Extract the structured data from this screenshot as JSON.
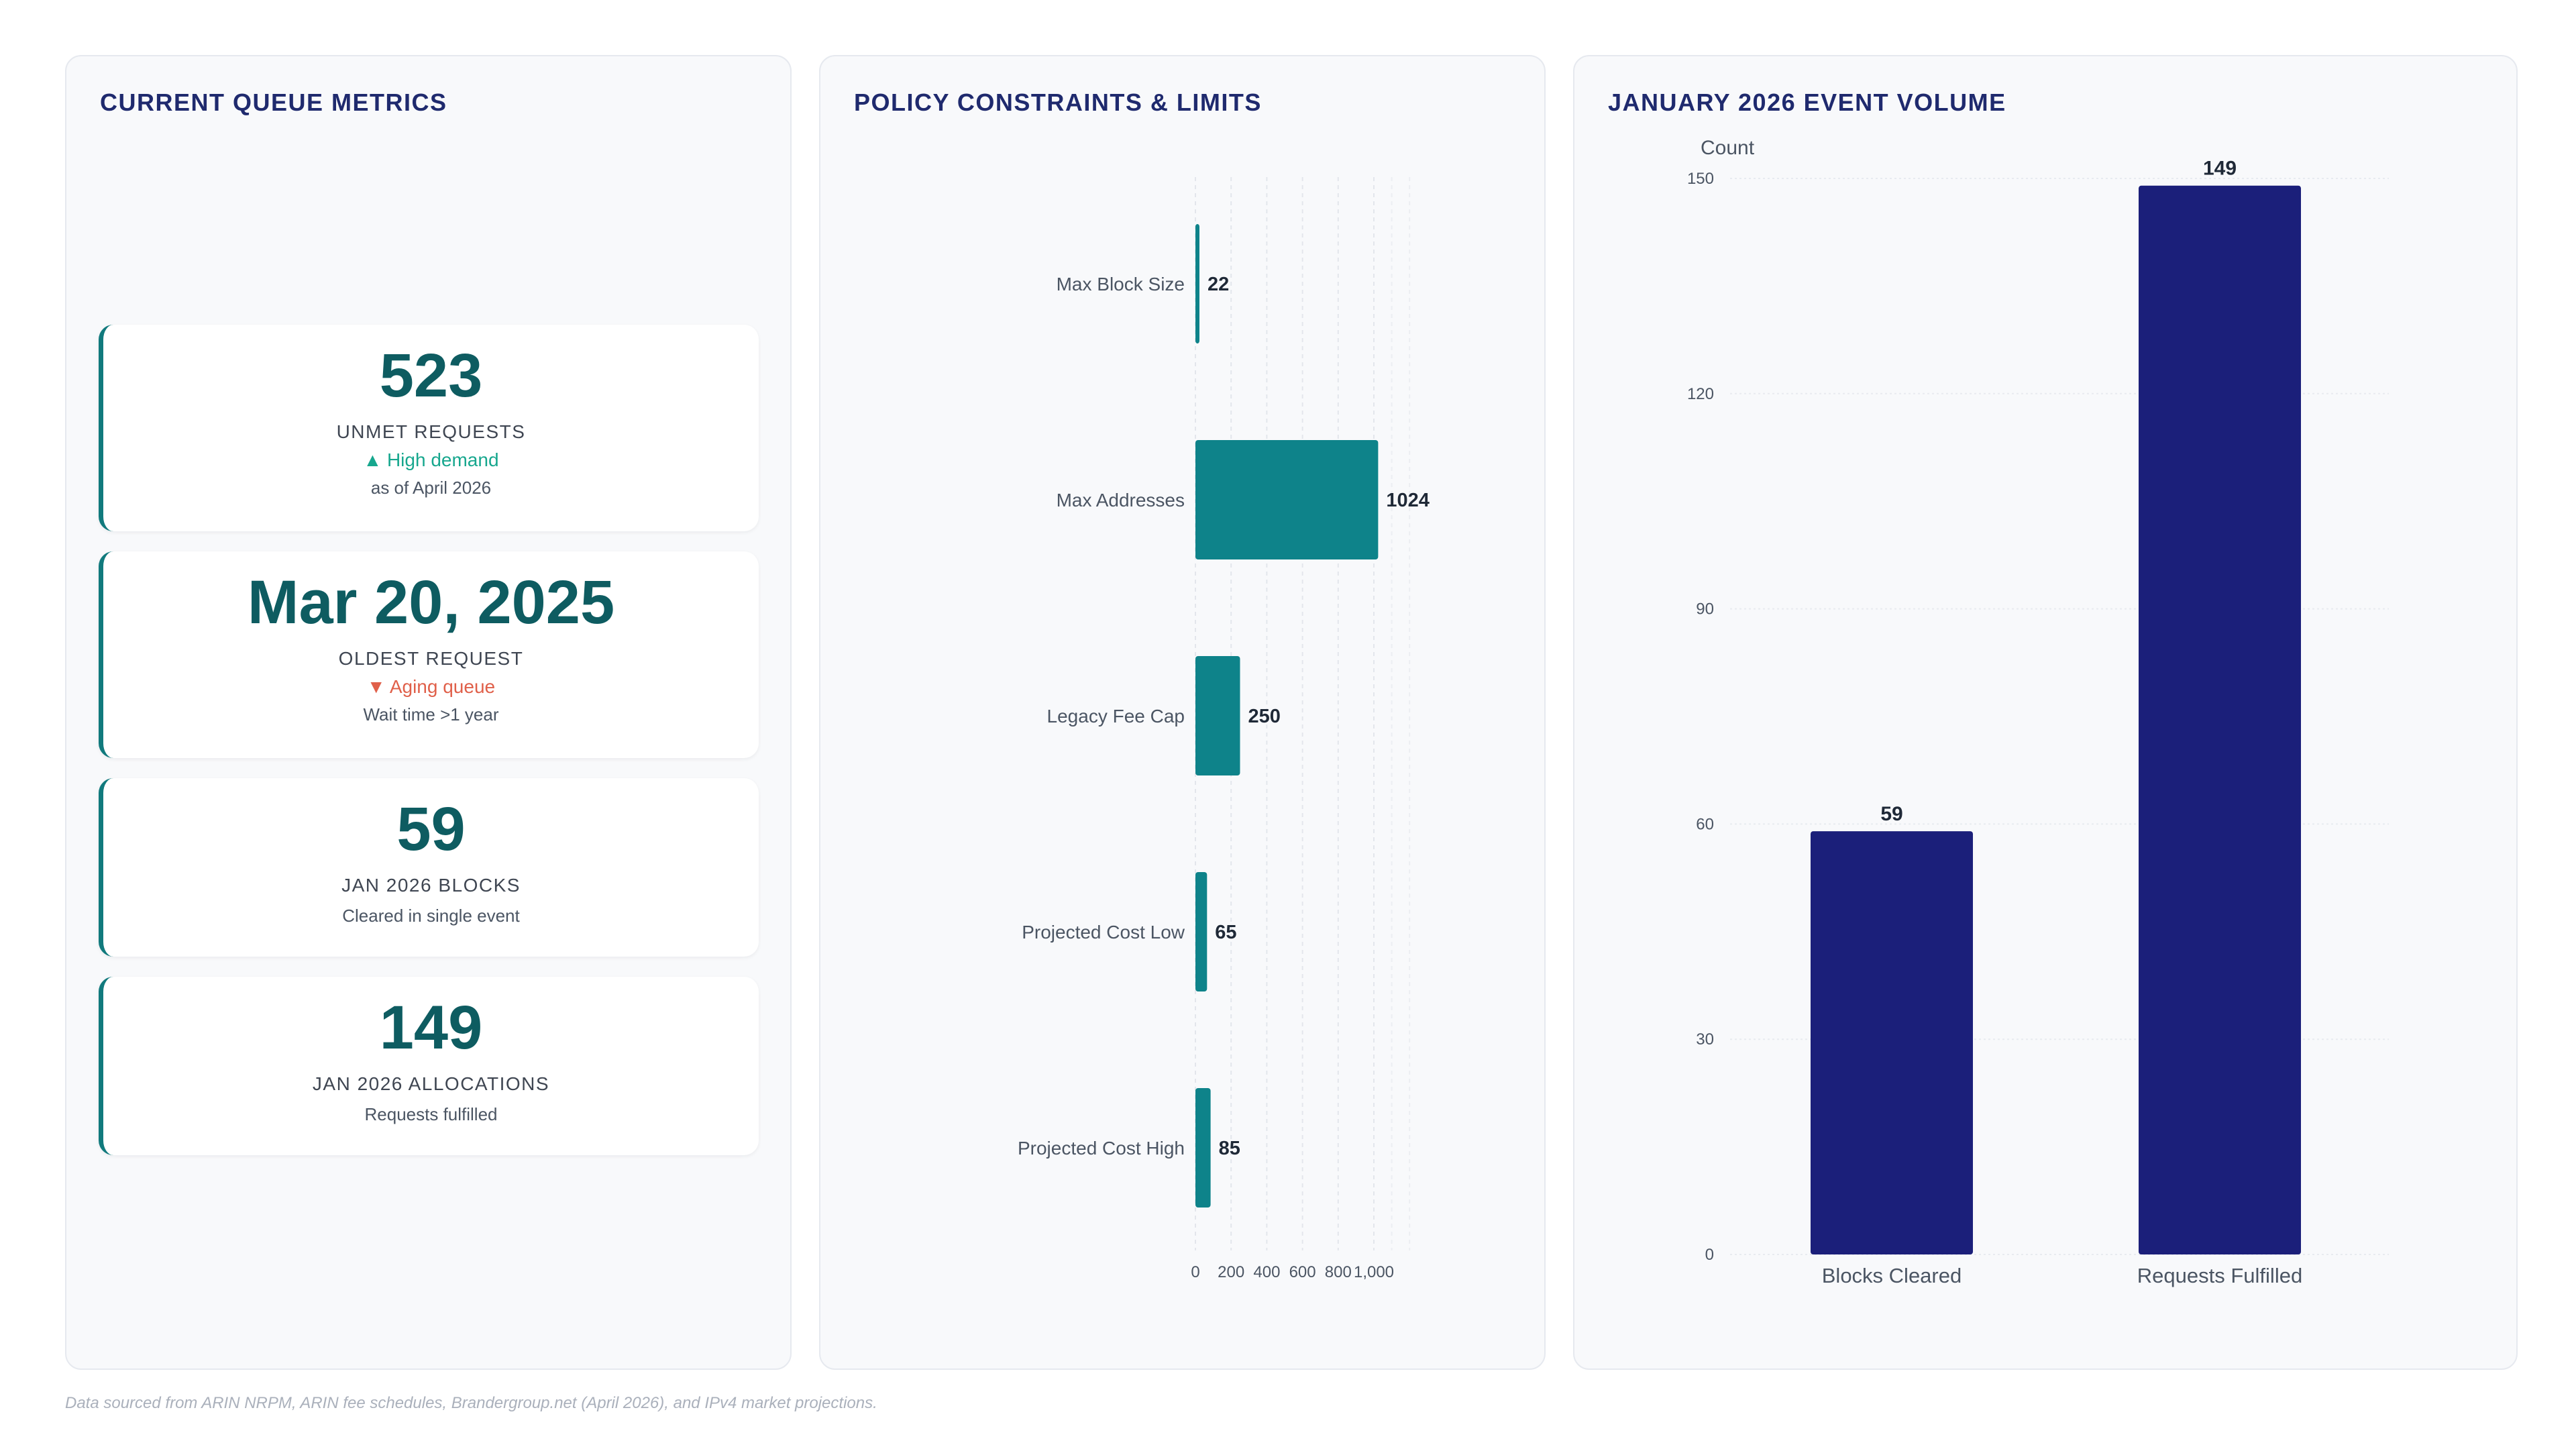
{
  "metrics_panel": {
    "title": "CURRENT QUEUE METRICS",
    "cards": [
      {
        "value": "523",
        "label": "UNMET REQUESTS",
        "trend": "▲ High demand",
        "trend_dir": "up",
        "sub": "as of April 2026"
      },
      {
        "value": "Mar 20, 2025",
        "label": "OLDEST REQUEST",
        "trend": "▼ Aging queue",
        "trend_dir": "down",
        "sub": "Wait time >1 year"
      },
      {
        "value": "59",
        "label": "JAN 2026 BLOCKS",
        "sub": "Cleared in single event"
      },
      {
        "value": "149",
        "label": "JAN 2026 ALLOCATIONS",
        "sub": "Requests fulfilled"
      }
    ]
  },
  "policy_panel": {
    "title": "POLICY CONSTRAINTS & LIMITS"
  },
  "volume_panel": {
    "title": "JANUARY 2026 EVENT VOLUME"
  },
  "footer": "Data sourced from ARIN NRPM, ARIN fee schedules, Brandergroup.net (April 2026), and IPv4 market projections.",
  "colors": {
    "teal": "#0e838a",
    "navy": "#1b1f7a",
    "kpi_value": "#0e5c61",
    "up": "#17a78e",
    "down": "#e0604a"
  },
  "chart_data": [
    {
      "type": "bar",
      "orientation": "horizontal",
      "categories": [
        "Max Block Size",
        "Max Addresses",
        "Legacy Fee Cap",
        "Projected Cost Low",
        "Projected Cost High"
      ],
      "values": [
        22,
        1024,
        250,
        65,
        85
      ],
      "value_labels": [
        "22",
        "1024",
        "250",
        "65",
        "85"
      ],
      "xlim": [
        0,
        1200
      ],
      "x_ticks": [
        0,
        200,
        400,
        600,
        800,
        1000
      ],
      "x_tick_labels": [
        "0",
        "200",
        "400",
        "600",
        "800",
        "1,000"
      ],
      "grid": "vertical dashed",
      "color": "#0e838a"
    },
    {
      "type": "bar",
      "orientation": "vertical",
      "categories": [
        "Blocks Cleared",
        "Requests Fulfilled"
      ],
      "values": [
        59,
        149
      ],
      "value_labels": [
        "59",
        "149"
      ],
      "ylabel": "Count",
      "ylim": [
        0,
        150
      ],
      "y_ticks": [
        0,
        30,
        60,
        90,
        120,
        150
      ],
      "y_tick_labels": [
        "0",
        "30",
        "60",
        "90",
        "120",
        "150"
      ],
      "grid": "horizontal",
      "color": "#1b1f7a"
    }
  ]
}
